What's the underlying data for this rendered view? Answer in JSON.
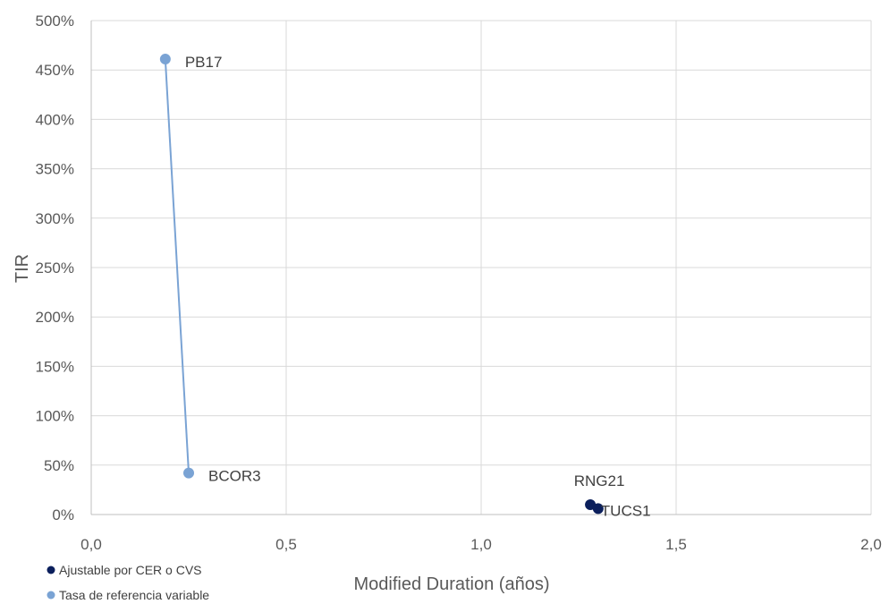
{
  "chart_data": {
    "type": "scatter",
    "title": "",
    "xlabel": "Modified Duration (años)",
    "ylabel": "TIR",
    "xlim": [
      0,
      2
    ],
    "ylim": [
      0,
      5
    ],
    "x_ticks": [
      0,
      0.5,
      1,
      1.5,
      2
    ],
    "x_tick_labels": [
      "0,0",
      "0,5",
      "1,0",
      "1,5",
      "2,0"
    ],
    "y_ticks": [
      0,
      0.5,
      1,
      1.5,
      2,
      2.5,
      3,
      3.5,
      4,
      4.5,
      5
    ],
    "y_tick_labels": [
      "0%",
      "50%",
      "100%",
      "150%",
      "200%",
      "250%",
      "300%",
      "350%",
      "400%",
      "450%",
      "500%"
    ],
    "grid": true,
    "legend_position": "bottom-left",
    "series": [
      {
        "name": "Ajustable por CER o CVS",
        "color": "#0b1f5c",
        "connected": false,
        "points": [
          {
            "x": 1.28,
            "y": 0.1,
            "label": "RNG21"
          },
          {
            "x": 1.3,
            "y": 0.06,
            "label": "TUCS1"
          }
        ]
      },
      {
        "name": "Tasa de referencia variable",
        "color": "#7aa3d4",
        "connected": true,
        "points": [
          {
            "x": 0.19,
            "y": 4.61,
            "label": "PB17"
          },
          {
            "x": 0.25,
            "y": 0.42,
            "label": "BCOR3"
          }
        ]
      }
    ]
  }
}
